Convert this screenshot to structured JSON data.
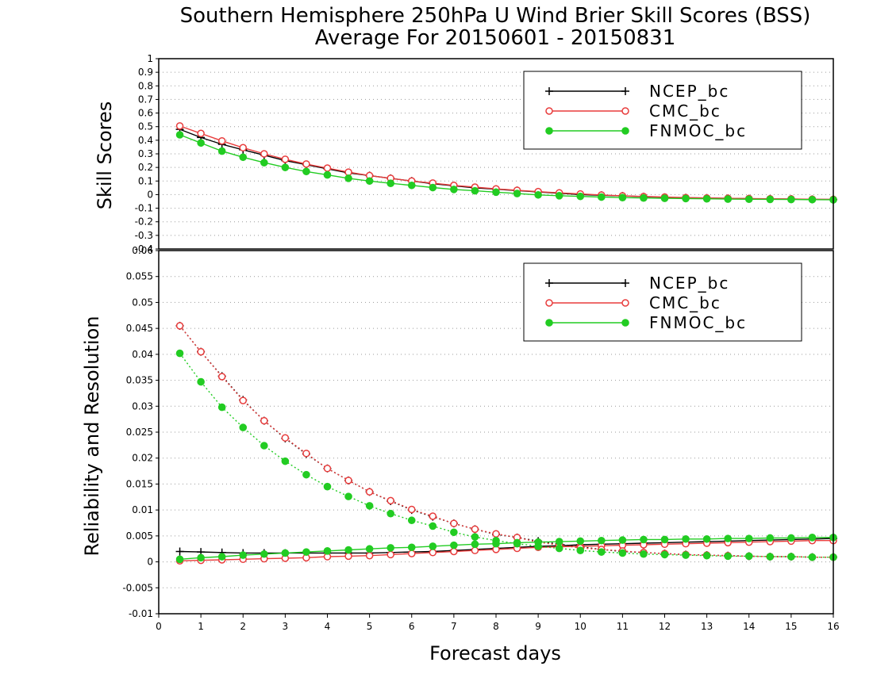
{
  "title_line1": "Southern Hemisphere 250hPa U Wind Brier Skill Scores (BSS)",
  "title_line2": "Average For 20150601 - 20150831",
  "colors": {
    "NCEP_bc": "#000000",
    "CMC_bc": "#e83c3c",
    "FNMOC_bc": "#22cc22"
  },
  "chart_data": [
    {
      "type": "line",
      "ylabel": "Skill Scores",
      "ylim": [
        -0.4,
        1
      ],
      "yticks": [
        "-0.4",
        "-0.3",
        "-0.2",
        "-0.1",
        "0",
        "0.1",
        "0.2",
        "0.3",
        "0.4",
        "0.5",
        "0.6",
        "0.7",
        "0.8",
        "0.9",
        "1"
      ],
      "grid": true,
      "legend_position": "top-right",
      "x": [
        0.5,
        1,
        1.5,
        2,
        2.5,
        3,
        3.5,
        4,
        4.5,
        5,
        5.5,
        6,
        6.5,
        7,
        7.5,
        8,
        8.5,
        9,
        9.5,
        10,
        10.5,
        11,
        11.5,
        12,
        12.5,
        13,
        13.5,
        14,
        14.5,
        15,
        15.5,
        16
      ],
      "series": [
        {
          "name": "NCEP_bc",
          "marker": "plus",
          "style": "solid",
          "values": [
            0.48,
            0.42,
            0.37,
            0.33,
            0.29,
            0.25,
            0.22,
            0.19,
            0.16,
            0.14,
            0.12,
            0.1,
            0.08,
            0.065,
            0.05,
            0.04,
            0.03,
            0.02,
            0.01,
            0.0,
            -0.005,
            -0.01,
            -0.015,
            -0.02,
            -0.023,
            -0.025,
            -0.028,
            -0.03,
            -0.032,
            -0.033,
            -0.035,
            -0.036
          ]
        },
        {
          "name": "CMC_bc",
          "marker": "open-circle",
          "style": "solid",
          "values": [
            0.505,
            0.45,
            0.395,
            0.345,
            0.3,
            0.26,
            0.225,
            0.195,
            0.165,
            0.14,
            0.12,
            0.1,
            0.085,
            0.068,
            0.055,
            0.042,
            0.032,
            0.022,
            0.013,
            0.005,
            -0.003,
            -0.009,
            -0.014,
            -0.018,
            -0.022,
            -0.025,
            -0.027,
            -0.029,
            -0.031,
            -0.032,
            -0.034,
            -0.035
          ]
        },
        {
          "name": "FNMOC_bc",
          "marker": "filled-circle",
          "style": "solid",
          "values": [
            0.44,
            0.38,
            0.32,
            0.275,
            0.235,
            0.2,
            0.17,
            0.145,
            0.12,
            0.1,
            0.083,
            0.068,
            0.052,
            0.038,
            0.028,
            0.018,
            0.008,
            -0.002,
            -0.008,
            -0.013,
            -0.018,
            -0.022,
            -0.025,
            -0.027,
            -0.029,
            -0.031,
            -0.033,
            -0.034,
            -0.035,
            -0.036,
            -0.037,
            -0.038
          ]
        }
      ]
    },
    {
      "type": "line",
      "ylabel": "Reliability and Resolution",
      "xlabel": "Forecast days",
      "ylim": [
        -0.01,
        0.06
      ],
      "xlim": [
        0,
        16
      ],
      "yticks": [
        "-0.01",
        "-0.005",
        "0",
        "0.005",
        "0.01",
        "0.015",
        "0.02",
        "0.025",
        "0.03",
        "0.035",
        "0.04",
        "0.045",
        "0.05",
        "0.055",
        "0.06"
      ],
      "xticks": [
        "0",
        "1",
        "2",
        "3",
        "4",
        "5",
        "6",
        "7",
        "8",
        "9",
        "10",
        "11",
        "12",
        "13",
        "14",
        "15",
        "16"
      ],
      "grid": true,
      "legend_position": "top-right",
      "x": [
        0.5,
        1,
        1.5,
        2,
        2.5,
        3,
        3.5,
        4,
        4.5,
        5,
        5.5,
        6,
        6.5,
        7,
        7.5,
        8,
        8.5,
        9,
        9.5,
        10,
        10.5,
        11,
        11.5,
        12,
        12.5,
        13,
        13.5,
        14,
        14.5,
        15,
        15.5,
        16
      ],
      "series": [
        {
          "name": "NCEP_bc",
          "component": "reliability",
          "marker": "plus",
          "style": "solid",
          "values": [
            0.002,
            0.0019,
            0.0018,
            0.0017,
            0.0017,
            0.0017,
            0.0017,
            0.0017,
            0.0017,
            0.0017,
            0.0018,
            0.0019,
            0.002,
            0.0022,
            0.0024,
            0.0026,
            0.0028,
            0.003,
            0.0031,
            0.0033,
            0.0034,
            0.0035,
            0.0036,
            0.0037,
            0.0038,
            0.0039,
            0.004,
            0.0041,
            0.0042,
            0.0043,
            0.0044,
            0.0045
          ]
        },
        {
          "name": "NCEP_bc",
          "component": "resolution",
          "marker": "plus",
          "style": "dotted",
          "values": [
            0.0455,
            0.0405,
            0.0358,
            0.0312,
            0.0272,
            0.0238,
            0.0208,
            0.018,
            0.0157,
            0.0135,
            0.0117,
            0.01,
            0.0087,
            0.0074,
            0.0063,
            0.0053,
            0.0047,
            0.004,
            0.0034,
            0.0029,
            0.0024,
            0.002,
            0.0018,
            0.0016,
            0.0014,
            0.0013,
            0.0012,
            0.0011,
            0.001,
            0.001,
            0.0009,
            0.0009
          ]
        },
        {
          "name": "CMC_bc",
          "component": "reliability",
          "marker": "open-circle",
          "style": "solid",
          "values": [
            0.0002,
            0.0003,
            0.0004,
            0.0005,
            0.0006,
            0.0007,
            0.0008,
            0.001,
            0.0011,
            0.0012,
            0.0014,
            0.0016,
            0.0018,
            0.002,
            0.0022,
            0.0024,
            0.0026,
            0.0028,
            0.0029,
            0.003,
            0.0031,
            0.0032,
            0.0033,
            0.0034,
            0.0035,
            0.0036,
            0.0037,
            0.0038,
            0.0039,
            0.004,
            0.0041,
            0.0041
          ]
        },
        {
          "name": "CMC_bc",
          "component": "resolution",
          "marker": "open-circle",
          "style": "dotted",
          "values": [
            0.0455,
            0.0405,
            0.0357,
            0.0311,
            0.0272,
            0.0239,
            0.0209,
            0.018,
            0.0157,
            0.0135,
            0.0118,
            0.0101,
            0.0088,
            0.0074,
            0.0063,
            0.0054,
            0.0047,
            0.0038,
            0.0032,
            0.0027,
            0.0024,
            0.0021,
            0.0018,
            0.0016,
            0.0014,
            0.0013,
            0.0012,
            0.0011,
            0.001,
            0.001,
            0.0009,
            0.0009
          ]
        },
        {
          "name": "FNMOC_bc",
          "component": "reliability",
          "marker": "filled-circle",
          "style": "solid",
          "values": [
            0.0005,
            0.0008,
            0.001,
            0.0013,
            0.0015,
            0.0017,
            0.0019,
            0.0021,
            0.0023,
            0.0025,
            0.0027,
            0.0028,
            0.003,
            0.0032,
            0.0034,
            0.0035,
            0.0037,
            0.0038,
            0.0039,
            0.004,
            0.0041,
            0.0042,
            0.0043,
            0.0043,
            0.0044,
            0.0044,
            0.0045,
            0.0045,
            0.0046,
            0.0046,
            0.0047,
            0.0047
          ]
        },
        {
          "name": "FNMOC_bc",
          "component": "resolution",
          "marker": "filled-circle",
          "style": "dotted",
          "values": [
            0.0402,
            0.0347,
            0.0298,
            0.0259,
            0.0224,
            0.0194,
            0.0168,
            0.0145,
            0.0126,
            0.0108,
            0.0093,
            0.008,
            0.0069,
            0.0057,
            0.0048,
            0.0041,
            0.0035,
            0.003,
            0.0026,
            0.0022,
            0.0019,
            0.0017,
            0.0015,
            0.0014,
            0.0013,
            0.0012,
            0.0011,
            0.0011,
            0.001,
            0.001,
            0.0009,
            0.0009
          ]
        }
      ]
    }
  ]
}
